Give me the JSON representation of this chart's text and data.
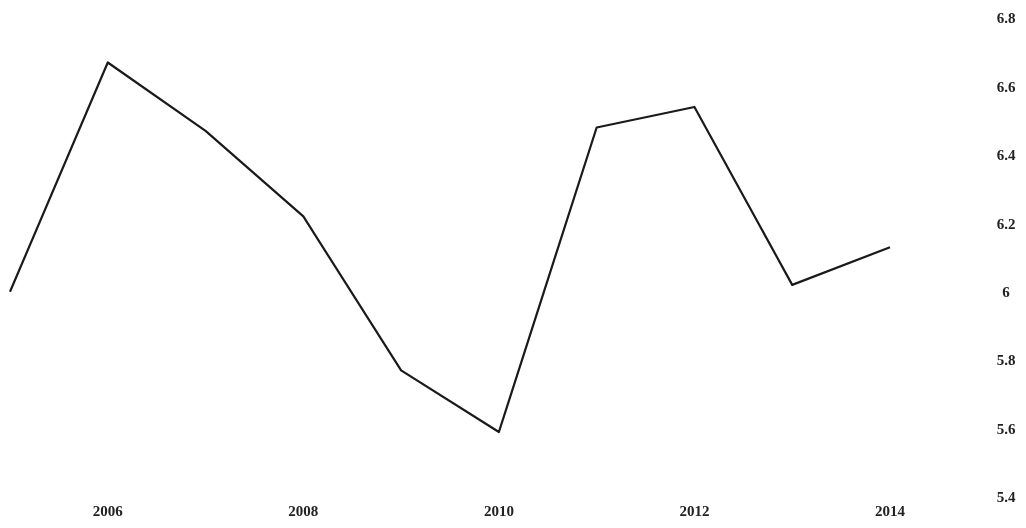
{
  "chart_data": {
    "type": "line",
    "x": [
      2005,
      2006,
      2007,
      2008,
      2009,
      2010,
      2011,
      2012,
      2013,
      2014
    ],
    "values": [
      6.0,
      6.67,
      6.47,
      6.22,
      5.77,
      5.59,
      6.48,
      6.54,
      6.02,
      6.13
    ],
    "color": "#1a1a1a",
    "xlim": [
      2005,
      2014
    ],
    "xticks": [
      2006,
      2008,
      2010,
      2012,
      2014
    ],
    "ylim": [
      5.4,
      6.8
    ],
    "yticks": [
      5.4,
      5.6,
      5.8,
      {
        "value": 6,
        "label": "6"
      },
      6.2,
      6.4,
      6.6,
      6.8
    ],
    "grid": false,
    "marker": "none",
    "line_style": "solid"
  }
}
